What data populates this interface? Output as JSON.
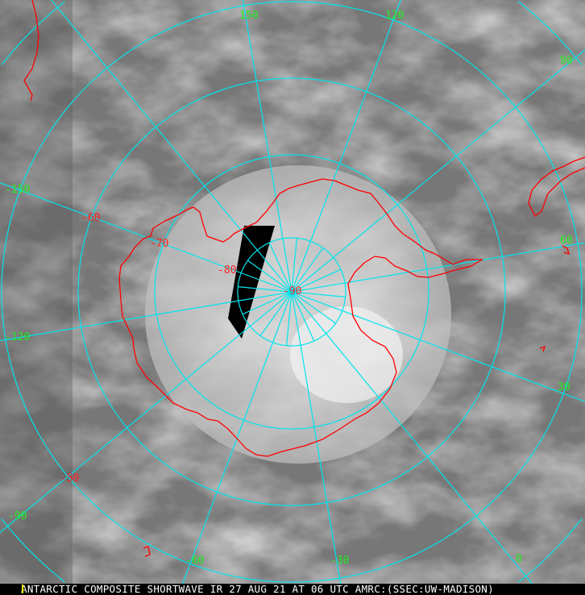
{
  "caption": "ANTARCTIC COMPOSITE SHORTWAVE IR 27 AUG 21 AT 06 UTC AMRC:(SSEC:UW-MADISON)",
  "longitude_labels": {
    "l150": "150",
    "l120": "120",
    "l90": "90",
    "l60": "60",
    "l30": "30",
    "l0": "0",
    "lm30": "-30",
    "lm60": "-60",
    "lm90": "-90",
    "lm120": "-120",
    "lm150": "-150"
  },
  "latitude_labels": {
    "lm50": "-50",
    "lm60": "-60",
    "lm70": "-70",
    "lm80": "-80",
    "lm90": "-90"
  },
  "colors": {
    "graticule": "#00e5ee",
    "coastline": "#ff0000",
    "longitude_label": "#22ee22",
    "latitude_label": "#ff2020",
    "caption_bg": "#000000",
    "caption_text": "#ffffff"
  }
}
